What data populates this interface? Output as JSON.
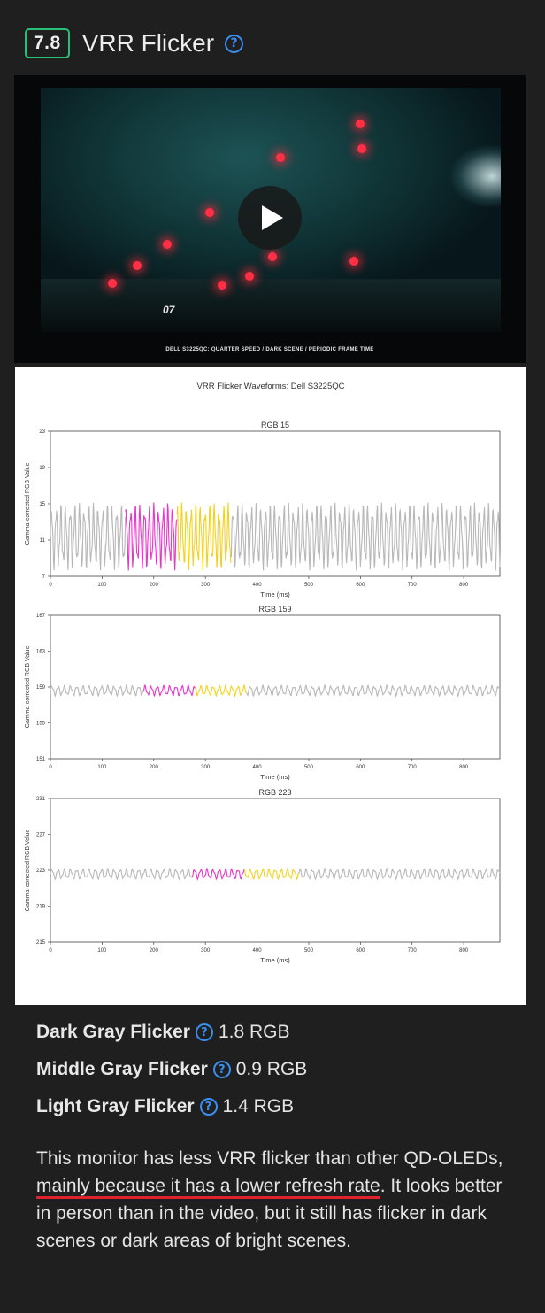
{
  "header": {
    "score": "7.8",
    "title": "VRR Flicker",
    "help_icon": "question-circle-icon"
  },
  "video": {
    "scene_number": "07",
    "caption": "DELL S3225QC: QUARTER SPEED / DARK SCENE / PERIODIC FRAME TIME",
    "play_icon": "play-icon"
  },
  "chart_title": "VRR Flicker Waveforms: Dell S3225QC",
  "chart_data": [
    {
      "type": "line",
      "title": "RGB 15",
      "xlabel": "Time (ms)",
      "ylabel": "Gamma-corrected RGB Value",
      "xlim": [
        0,
        870
      ],
      "ylim": [
        7,
        23
      ],
      "xticks": [
        0,
        100,
        200,
        300,
        400,
        500,
        600,
        700,
        800
      ],
      "yticks": [
        7,
        11,
        15,
        19,
        23
      ],
      "base": 11.4,
      "amp": 3.8,
      "period": 9,
      "series": [
        {
          "color": "#b8b8b8",
          "from": 0,
          "to": 145
        },
        {
          "color": "#e934c9",
          "from": 145,
          "to": 245
        },
        {
          "color": "#f3d21d",
          "from": 245,
          "to": 350
        },
        {
          "color": "#b8b8b8",
          "from": 350,
          "to": 870
        }
      ]
    },
    {
      "type": "line",
      "title": "RGB 159",
      "xlabel": "Time (ms)",
      "ylabel": "Gamma-corrected RGB Value",
      "xlim": [
        0,
        870
      ],
      "ylim": [
        151,
        167
      ],
      "xticks": [
        0,
        100,
        200,
        300,
        400,
        500,
        600,
        700,
        800
      ],
      "yticks": [
        151,
        155,
        159,
        163,
        167
      ],
      "base": 158.6,
      "amp": 0.6,
      "period": 12,
      "series": [
        {
          "color": "#b8b8b8",
          "from": 0,
          "to": 180
        },
        {
          "color": "#e934c9",
          "from": 180,
          "to": 280
        },
        {
          "color": "#f3d21d",
          "from": 280,
          "to": 380
        },
        {
          "color": "#b8b8b8",
          "from": 380,
          "to": 870
        }
      ]
    },
    {
      "type": "line",
      "title": "RGB 223",
      "xlabel": "Time (ms)",
      "ylabel": "Gamma-corrected RGB Value",
      "xlim": [
        0,
        870
      ],
      "ylim": [
        215,
        231
      ],
      "xticks": [
        0,
        100,
        200,
        300,
        400,
        500,
        600,
        700,
        800
      ],
      "yticks": [
        215,
        219,
        223,
        227,
        231
      ],
      "base": 222.6,
      "amp": 0.6,
      "period": 12,
      "series": [
        {
          "color": "#b8b8b8",
          "from": 0,
          "to": 275
        },
        {
          "color": "#e934c9",
          "from": 275,
          "to": 375
        },
        {
          "color": "#f3d21d",
          "from": 375,
          "to": 480
        },
        {
          "color": "#b8b8b8",
          "from": 480,
          "to": 870
        }
      ]
    }
  ],
  "stats": [
    {
      "label": "Dark Gray Flicker",
      "value": "1.8 RGB"
    },
    {
      "label": "Middle Gray Flicker",
      "value": "0.9 RGB"
    },
    {
      "label": "Light Gray Flicker",
      "value": "1.4 RGB"
    }
  ],
  "description": {
    "part1": "This monitor has less VRR flicker than other QD-OLEDs, ",
    "underlined": "mainly because it has a lower refresh rate",
    "part2": ". It looks better in person than in the video, but it still has flicker in dark scenes or dark areas of bright scenes."
  },
  "colors": {
    "score_border": "#27c07a",
    "help": "#3a8ef0",
    "underline": "#e0202b",
    "magenta": "#e934c9",
    "yellow": "#f3d21d",
    "gray": "#b8b8b8"
  }
}
